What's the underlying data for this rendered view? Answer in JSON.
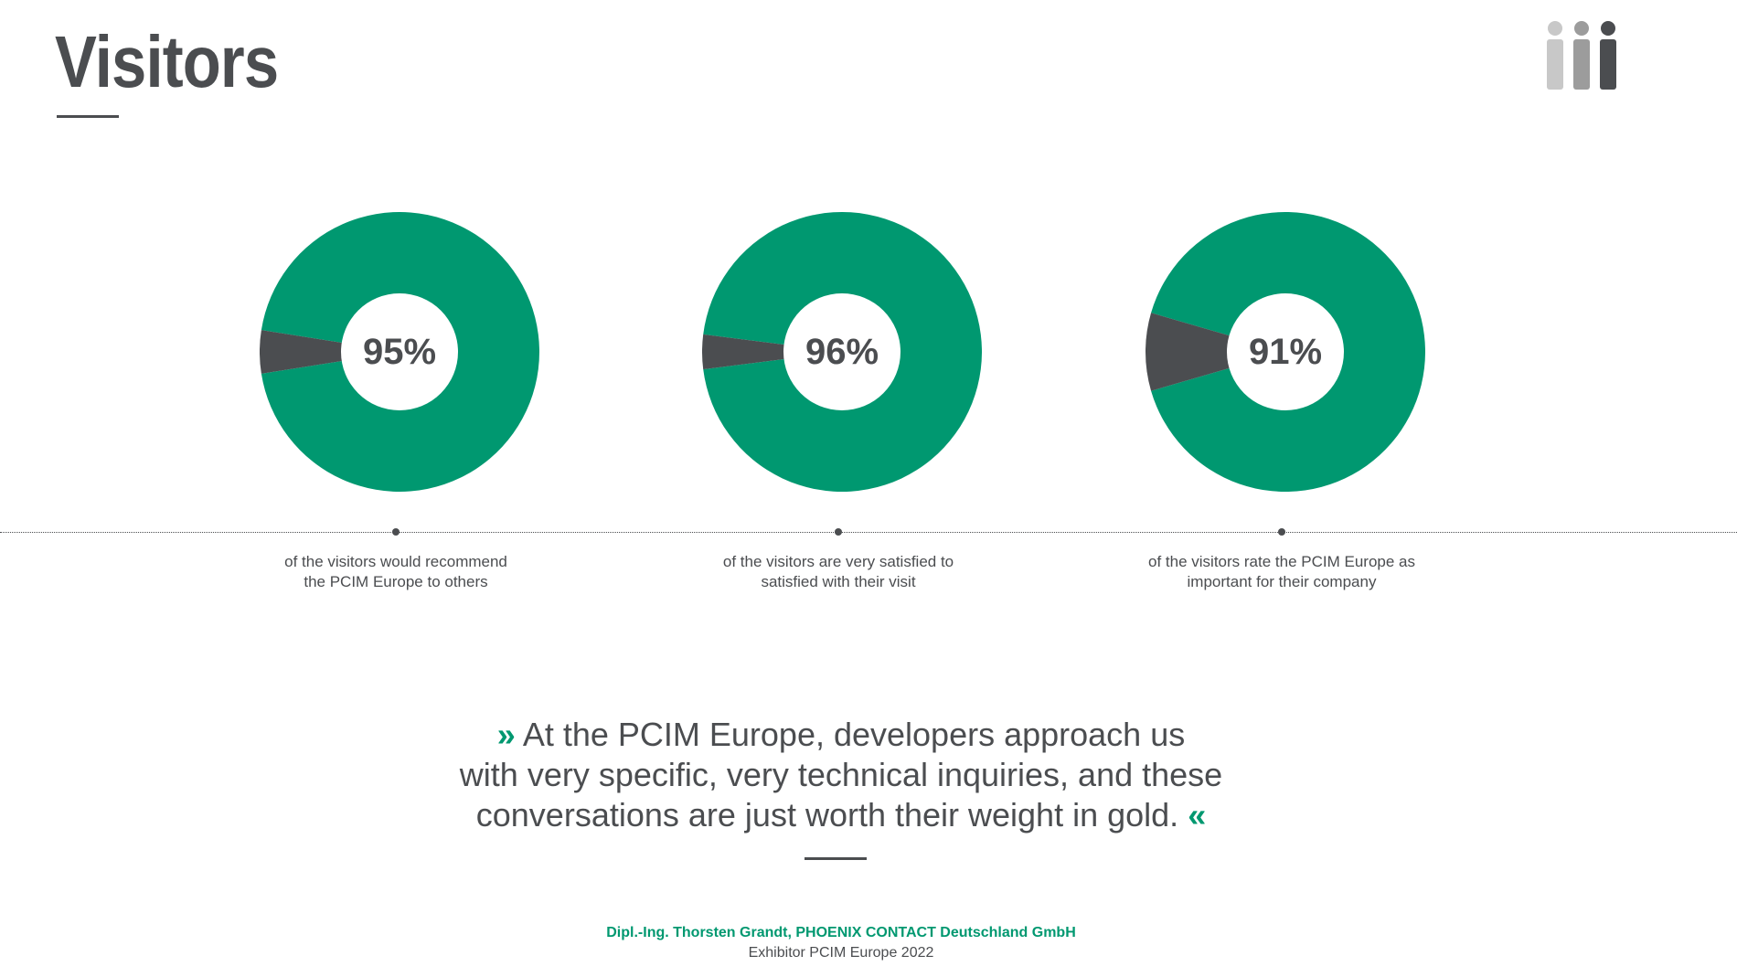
{
  "title": "Visitors",
  "header_icon": "people-group-icon",
  "colors": {
    "positive": "#009870",
    "negative": "#4b4d50",
    "text": "#4b4d50",
    "accent": "#009870",
    "icon_light": "#c8c8c8",
    "icon_mid": "#9c9c9c",
    "icon_dark": "#4b4d50"
  },
  "chart_data": [
    {
      "type": "pie",
      "value_label": "95%",
      "values": [
        95,
        5
      ],
      "caption_lines": [
        "of the visitors would recommend",
        "the PCIM Europe to others"
      ]
    },
    {
      "type": "pie",
      "value_label": "96%",
      "values": [
        96,
        4
      ],
      "caption_lines": [
        "of the visitors are very satisfied to",
        "satisfied with their visit"
      ]
    },
    {
      "type": "pie",
      "value_label": "91%",
      "values": [
        91,
        9
      ],
      "caption_lines": [
        "of the visitors rate the PCIM Europe as",
        "important for their company"
      ]
    }
  ],
  "quote": {
    "open_mark": "»",
    "close_mark": "«",
    "lines": [
      "At the PCIM Europe, developers approach us",
      "with very specific, very technical inquiries, and these",
      "conversations are just worth their weight in gold."
    ],
    "author": "Dipl.-Ing. Thorsten Grandt, PHOENIX CONTACT Deutschland GmbH",
    "author_role": "Exhibitor PCIM Europe 2022"
  }
}
